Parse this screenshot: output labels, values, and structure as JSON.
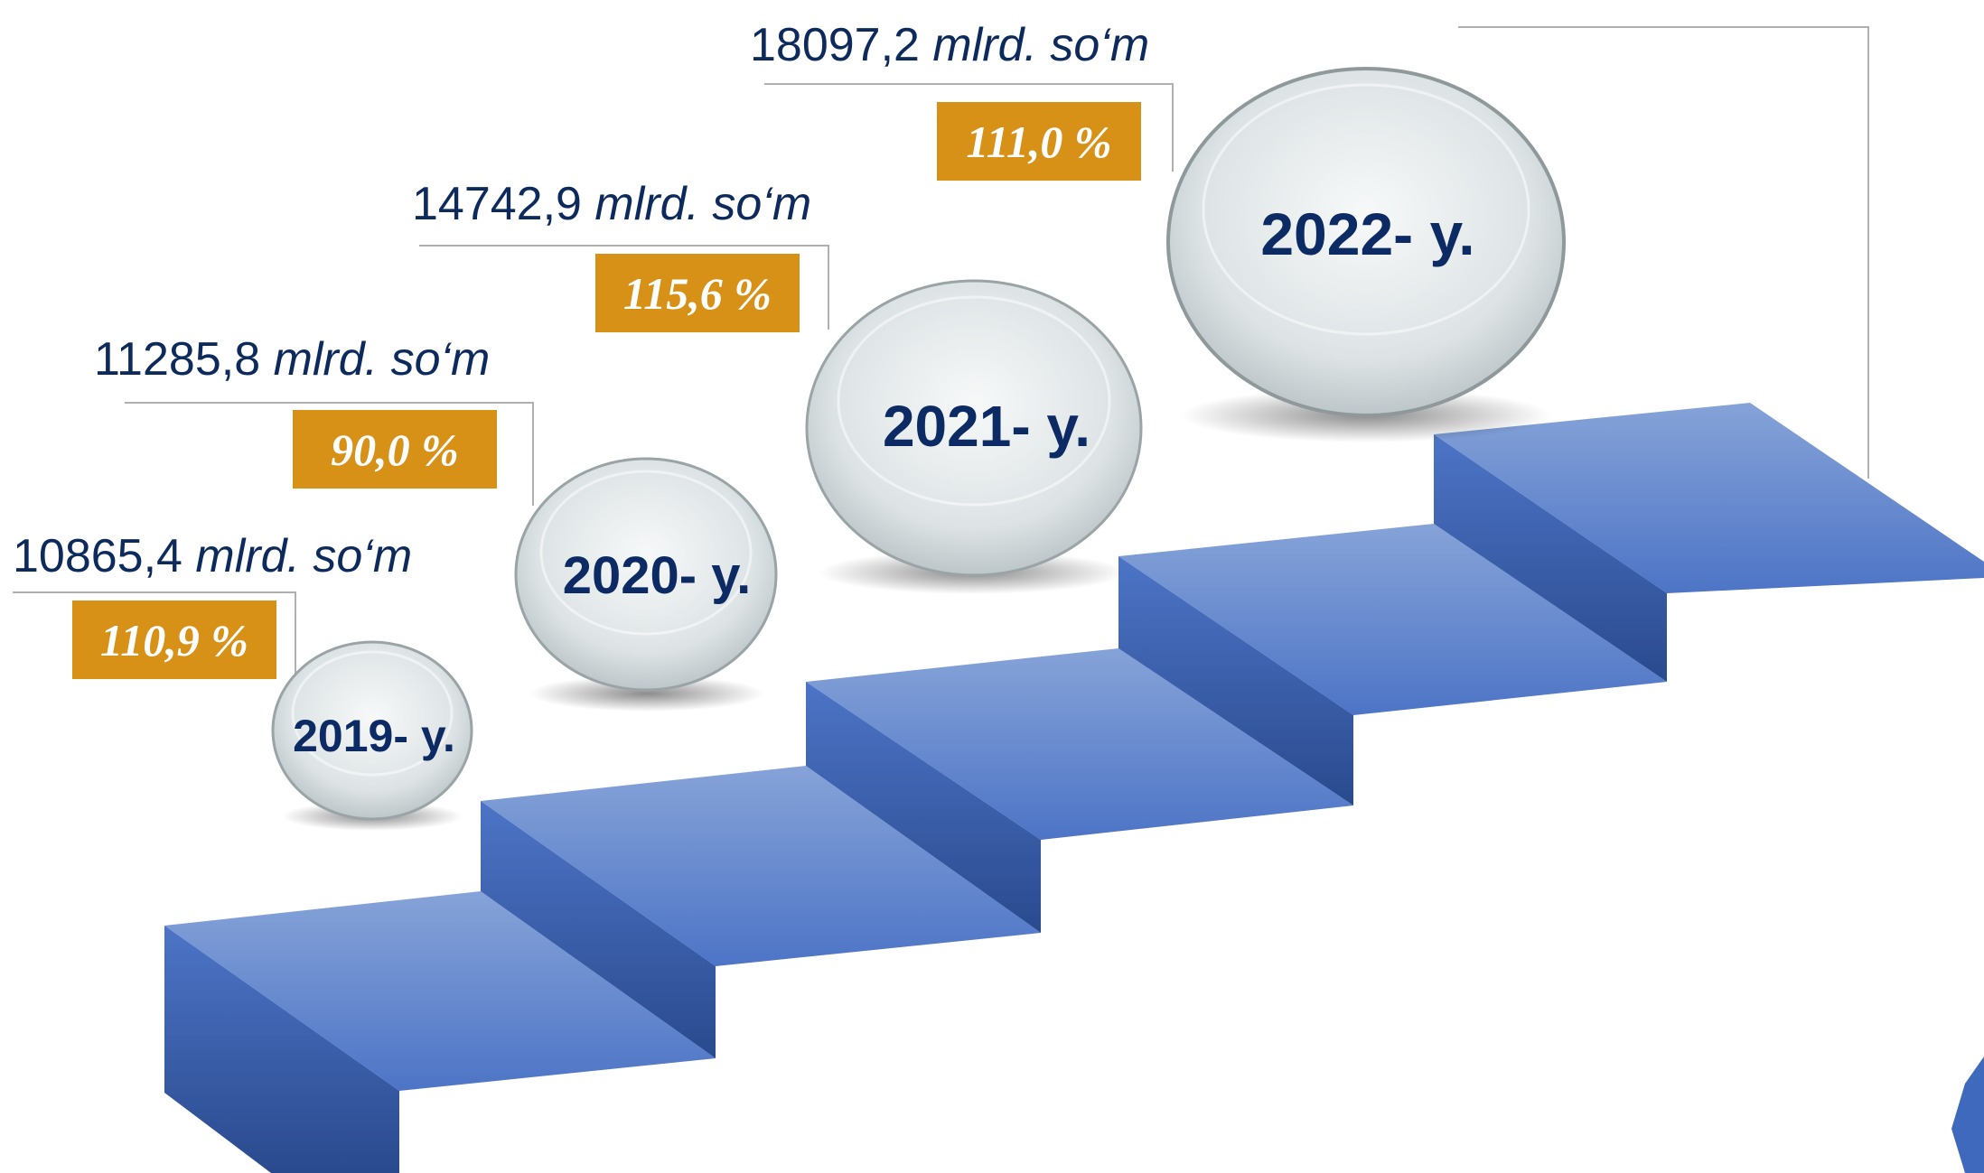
{
  "colors": {
    "accent_badge": "#d69116",
    "text_dark_blue": "#0d2a5c",
    "step_blue": "#4a72c4",
    "step_dark": "#2e4f95",
    "leader_line": "#b0b0b0"
  },
  "milestones": [
    {
      "year": "2019- y.",
      "value": "10865,4",
      "unit": "mlrd. so‘m",
      "growth": "110,9 %"
    },
    {
      "year": "2020- y.",
      "value": "11285,8",
      "unit": "mlrd. so‘m",
      "growth": "90,0 %"
    },
    {
      "year": "2021- y.",
      "value": "14742,9",
      "unit": "mlrd. so‘m",
      "growth": "115,6 %"
    },
    {
      "year": "2022- y.",
      "value": "18097,2",
      "unit": "mlrd. so‘m",
      "growth": "111,0 %"
    }
  ]
}
